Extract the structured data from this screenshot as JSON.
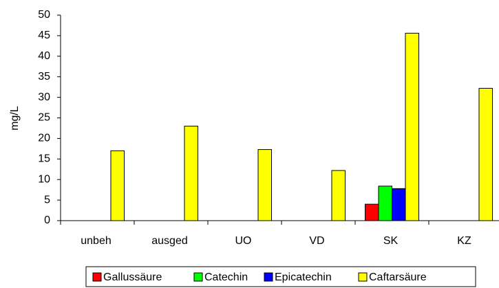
{
  "chart_data": {
    "type": "bar",
    "categories": [
      "unbeh",
      "ausged",
      "UO",
      "VD",
      "SK",
      "KZ"
    ],
    "series": [
      {
        "name": "Gallussäure",
        "color": "#ff0000",
        "values": [
          0,
          0,
          0,
          0,
          4,
          0
        ]
      },
      {
        "name": "Catechin",
        "color": "#00ff00",
        "values": [
          0,
          0,
          0,
          0,
          8.4,
          0
        ]
      },
      {
        "name": "Epicatechin",
        "color": "#0000ff",
        "values": [
          0,
          0,
          0,
          0,
          7.8,
          0
        ]
      },
      {
        "name": "Caftarsäure",
        "color": "#ffff00",
        "values": [
          17,
          23,
          17.3,
          12.2,
          45.6,
          32.2
        ]
      }
    ],
    "ylabel": "mg/L",
    "ylim": [
      0,
      50
    ],
    "yticks": [
      0,
      5,
      10,
      15,
      20,
      25,
      30,
      35,
      40,
      45,
      50
    ],
    "legend": "bottom"
  }
}
